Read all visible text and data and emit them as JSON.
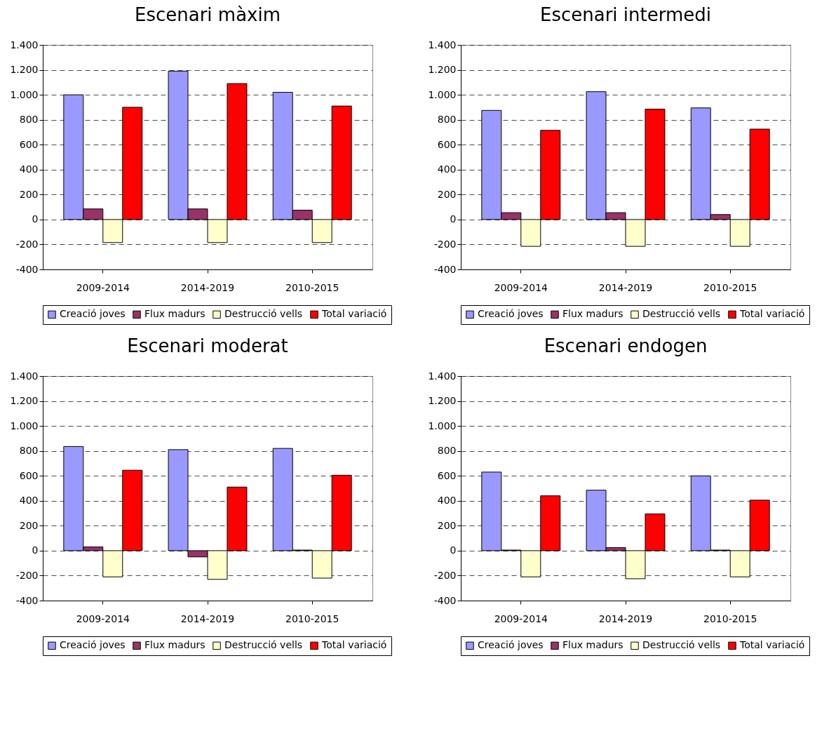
{
  "chart_data": [
    {
      "type": "bar",
      "title": "Escenari màxim",
      "categories": [
        "2009-2014",
        "2014-2019",
        "2010-2015"
      ],
      "series": [
        {
          "name": "Creació joves",
          "color": "#9999ff",
          "values": [
            1000,
            1190,
            1020
          ]
        },
        {
          "name": "Flux madurs",
          "color": "#993366",
          "values": [
            85,
            85,
            75
          ]
        },
        {
          "name": "Destrucció vells",
          "color": "#ffffcc",
          "values": [
            -185,
            -185,
            -185
          ]
        },
        {
          "name": "Total variació",
          "color": "#ff0000",
          "values": [
            900,
            1090,
            910
          ]
        }
      ],
      "ylim": [
        -400,
        1400
      ],
      "yticks": [
        -400,
        -200,
        0,
        200,
        400,
        600,
        800,
        {
          "value": 1000,
          "label": "1.000"
        },
        {
          "value": 1200,
          "label": "1.200"
        },
        {
          "value": 1400,
          "label": "1.400"
        }
      ],
      "grid": "y",
      "legend": "bottom"
    },
    {
      "type": "bar",
      "title": "Escenari intermedi",
      "categories": [
        "2009-2014",
        "2014-2019",
        "2010-2015"
      ],
      "series": [
        {
          "name": "Creació joves",
          "color": "#9999ff",
          "values": [
            875,
            1025,
            895
          ]
        },
        {
          "name": "Flux madurs",
          "color": "#993366",
          "values": [
            55,
            55,
            40
          ]
        },
        {
          "name": "Destrucció vells",
          "color": "#ffffcc",
          "values": [
            -215,
            -215,
            -215
          ]
        },
        {
          "name": "Total variació",
          "color": "#ff0000",
          "values": [
            715,
            885,
            725
          ]
        }
      ],
      "ylim": [
        -400,
        1400
      ],
      "yticks": [
        -400,
        -200,
        0,
        200,
        400,
        600,
        800,
        {
          "value": 1000,
          "label": "1.000"
        },
        {
          "value": 1200,
          "label": "1.200"
        },
        {
          "value": 1400,
          "label": "1.400"
        }
      ],
      "grid": "y",
      "legend": "bottom"
    },
    {
      "type": "bar",
      "title": "Escenari moderat",
      "categories": [
        "2009-2014",
        "2014-2019",
        "2010-2015"
      ],
      "series": [
        {
          "name": "Creació joves",
          "color": "#9999ff",
          "values": [
            835,
            810,
            820
          ]
        },
        {
          "name": "Flux madurs",
          "color": "#993366",
          "values": [
            30,
            -50,
            5
          ]
        },
        {
          "name": "Destrucció vells",
          "color": "#ffffcc",
          "values": [
            -210,
            -230,
            -220
          ]
        },
        {
          "name": "Total variació",
          "color": "#ff0000",
          "values": [
            645,
            510,
            605
          ]
        }
      ],
      "ylim": [
        -400,
        1400
      ],
      "yticks": [
        -400,
        -200,
        0,
        200,
        400,
        600,
        800,
        {
          "value": 1000,
          "label": "1.000"
        },
        {
          "value": 1200,
          "label": "1.200"
        },
        {
          "value": 1400,
          "label": "1.400"
        }
      ],
      "grid": "y",
      "legend": "bottom"
    },
    {
      "type": "bar",
      "title": "Escenari endogen",
      "categories": [
        "2009-2014",
        "2014-2019",
        "2010-2015"
      ],
      "series": [
        {
          "name": "Creació joves",
          "color": "#9999ff",
          "values": [
            630,
            485,
            600
          ]
        },
        {
          "name": "Flux madurs",
          "color": "#993366",
          "values": [
            5,
            25,
            5
          ]
        },
        {
          "name": "Destrucció vells",
          "color": "#ffffcc",
          "values": [
            -210,
            -225,
            -210
          ]
        },
        {
          "name": "Total variació",
          "color": "#ff0000",
          "values": [
            440,
            295,
            405
          ]
        }
      ],
      "ylim": [
        -400,
        1400
      ],
      "yticks": [
        -400,
        -200,
        0,
        200,
        400,
        600,
        800,
        {
          "value": 1000,
          "label": "1.000"
        },
        {
          "value": 1200,
          "label": "1.200"
        },
        {
          "value": 1400,
          "label": "1.400"
        }
      ],
      "grid": "y",
      "legend": "bottom"
    }
  ]
}
